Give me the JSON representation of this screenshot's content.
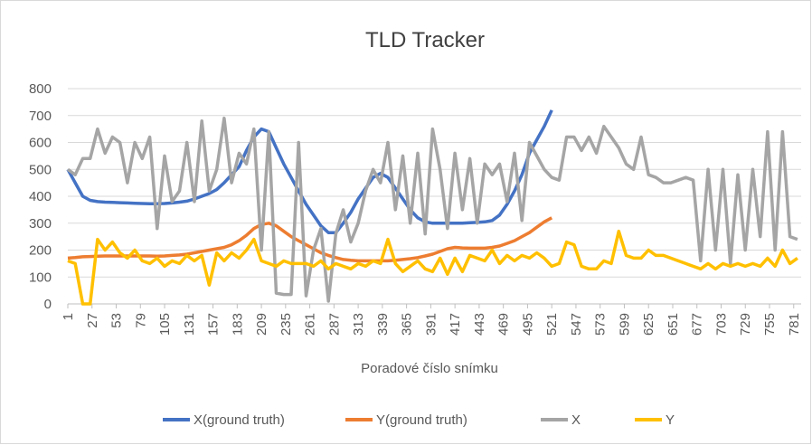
{
  "chart_data": {
    "type": "line",
    "title": "TLD Tracker",
    "x_label": "Poradové číslo snímku",
    "x": [
      1,
      9,
      17,
      25,
      33,
      41,
      49,
      57,
      65,
      73,
      81,
      89,
      97,
      105,
      113,
      121,
      129,
      137,
      145,
      153,
      161,
      169,
      177,
      185,
      193,
      201,
      209,
      217,
      225,
      233,
      241,
      249,
      257,
      265,
      273,
      281,
      289,
      297,
      305,
      313,
      321,
      329,
      337,
      345,
      353,
      361,
      369,
      377,
      385,
      393,
      401,
      409,
      417,
      425,
      433,
      441,
      449,
      457,
      465,
      473,
      481,
      489,
      497,
      505,
      513,
      521,
      529,
      537,
      545,
      553,
      561,
      569,
      577,
      585,
      593,
      601,
      609,
      617,
      625,
      633,
      641,
      649,
      657,
      665,
      673,
      681,
      689,
      697,
      705,
      713,
      721,
      729,
      737,
      745,
      753,
      761,
      769,
      777,
      785
    ],
    "xlim": [
      1,
      789
    ],
    "xticks": [
      1,
      27,
      53,
      79,
      105,
      131,
      157,
      183,
      209,
      235,
      261,
      287,
      313,
      339,
      365,
      391,
      417,
      443,
      469,
      495,
      521,
      547,
      573,
      599,
      625,
      651,
      677,
      703,
      729,
      755,
      781
    ],
    "ylim": [
      0,
      800
    ],
    "yticks": [
      0,
      100,
      200,
      300,
      400,
      500,
      600,
      700,
      800
    ],
    "grid": true,
    "legend": "bottom",
    "series": [
      {
        "name": "X(ground truth)",
        "color": "#4472c4",
        "values": [
          500,
          450,
          400,
          385,
          380,
          378,
          377,
          376,
          375,
          374,
          373,
          372,
          372,
          373,
          375,
          378,
          382,
          390,
          400,
          410,
          425,
          450,
          480,
          510,
          570,
          620,
          650,
          640,
          580,
          520,
          470,
          420,
          370,
          330,
          290,
          265,
          265,
          300,
          340,
          390,
          430,
          470,
          485,
          470,
          430,
          390,
          350,
          320,
          305,
          300,
          300,
          300,
          300,
          300,
          302,
          303,
          305,
          310,
          330,
          370,
          420,
          480,
          560,
          610,
          660,
          720,
          null,
          null,
          null,
          null,
          null,
          null,
          null,
          null,
          null,
          null,
          null,
          null,
          null,
          null,
          null,
          null,
          null,
          null,
          null,
          null,
          null,
          null,
          null,
          null,
          null,
          null,
          null,
          null,
          null,
          null,
          null,
          null,
          null
        ]
      },
      {
        "name": "Y(ground truth)",
        "color": "#ed7d31",
        "values": [
          170,
          172,
          175,
          176,
          177,
          178,
          178,
          178,
          178,
          178,
          178,
          178,
          177,
          178,
          180,
          182,
          185,
          190,
          195,
          200,
          205,
          210,
          220,
          235,
          255,
          280,
          295,
          300,
          290,
          270,
          250,
          235,
          220,
          205,
          190,
          180,
          172,
          165,
          162,
          160,
          160,
          160,
          160,
          160,
          162,
          165,
          168,
          172,
          178,
          185,
          195,
          205,
          210,
          208,
          207,
          207,
          207,
          210,
          215,
          225,
          235,
          250,
          265,
          285,
          305,
          320,
          null,
          null,
          null,
          null,
          null,
          null,
          null,
          null,
          null,
          null,
          null,
          null,
          null,
          null,
          null,
          null,
          null,
          null,
          null,
          null,
          null,
          null,
          null,
          null,
          null,
          null,
          null,
          null,
          null,
          null,
          null,
          null,
          null
        ]
      },
      {
        "name": "X",
        "color": "#a5a5a5",
        "values": [
          500,
          480,
          540,
          540,
          650,
          560,
          620,
          600,
          450,
          600,
          540,
          620,
          280,
          550,
          380,
          420,
          600,
          380,
          680,
          420,
          500,
          690,
          450,
          560,
          520,
          650,
          200,
          640,
          40,
          35,
          35,
          600,
          30,
          200,
          280,
          10,
          260,
          350,
          230,
          300,
          420,
          500,
          450,
          600,
          350,
          550,
          300,
          560,
          260,
          650,
          500,
          280,
          560,
          350,
          540,
          300,
          520,
          480,
          520,
          380,
          560,
          310,
          600,
          550,
          500,
          470,
          460,
          620,
          620,
          570,
          620,
          560,
          660,
          620,
          580,
          520,
          500,
          620,
          480,
          470,
          450,
          450,
          460,
          470,
          460,
          160,
          500,
          200,
          500,
          150,
          480,
          200,
          500,
          250,
          640,
          200,
          640,
          250,
          240
        ]
      },
      {
        "name": "Y",
        "color": "#ffc000",
        "values": [
          160,
          150,
          0,
          0,
          240,
          200,
          230,
          190,
          170,
          200,
          160,
          150,
          170,
          140,
          160,
          150,
          180,
          160,
          180,
          70,
          190,
          160,
          190,
          170,
          200,
          240,
          160,
          150,
          140,
          160,
          150,
          150,
          150,
          140,
          160,
          130,
          150,
          140,
          130,
          150,
          140,
          160,
          150,
          240,
          150,
          120,
          140,
          160,
          130,
          120,
          170,
          110,
          170,
          120,
          180,
          170,
          160,
          200,
          150,
          180,
          160,
          180,
          170,
          190,
          170,
          140,
          150,
          230,
          220,
          140,
          130,
          130,
          160,
          150,
          270,
          180,
          170,
          170,
          200,
          180,
          180,
          170,
          160,
          150,
          140,
          130,
          150,
          130,
          150,
          140,
          150,
          140,
          150,
          140,
          170,
          140,
          200,
          150,
          170
        ]
      }
    ]
  }
}
